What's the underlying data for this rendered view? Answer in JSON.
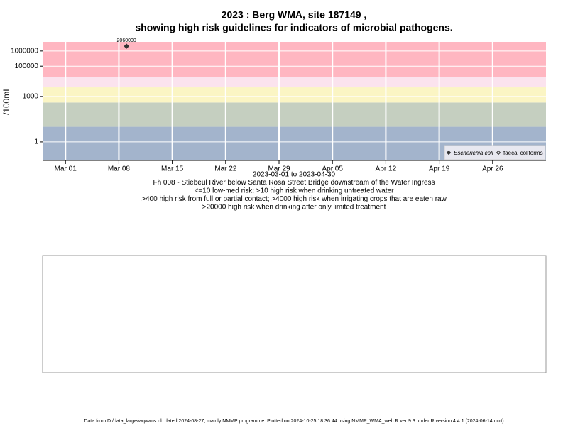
{
  "chart_data": {
    "type": "scatter",
    "title": "2023 : Berg WMA, site 187149 ,",
    "subtitle": "showing high risk guidelines for indicators of microbial pathogens.",
    "y_label": "/100mL",
    "log_y": true,
    "grid": true,
    "xlim": [
      "2023-02-26",
      "2023-05-03"
    ],
    "xticks": [
      {
        "value": "2023-03-01",
        "label": "Mar 01"
      },
      {
        "value": "2023-03-08",
        "label": "Mar 08"
      },
      {
        "value": "2023-03-15",
        "label": "Mar 15"
      },
      {
        "value": "2023-03-22",
        "label": "Mar 22"
      },
      {
        "value": "2023-03-29",
        "label": "Mar 29"
      },
      {
        "value": "2023-04-05",
        "label": "Apr 05"
      },
      {
        "value": "2023-04-12",
        "label": "Apr 12"
      },
      {
        "value": "2023-04-19",
        "label": "Apr 19"
      },
      {
        "value": "2023-04-26",
        "label": "Apr 26"
      }
    ],
    "ylim": [
      0.06,
      4000000
    ],
    "yticks": [
      1,
      1000,
      100000,
      1000000
    ],
    "thresholds": [
      10,
      400,
      4000,
      20000
    ],
    "band_colors": [
      "#a3b4cc",
      "#c5cfc0",
      "#fbf5c4",
      "#fbe3ee",
      "#ffb6c1"
    ],
    "series": [
      {
        "name": "Escherichia coli",
        "color": "#333333",
        "marker": "filled",
        "x": [
          "2023-03-09"
        ],
        "values": [
          2060000
        ]
      },
      {
        "name": "faecal coliforms",
        "color": "#333333",
        "marker": "open",
        "x": [],
        "values": []
      }
    ],
    "legend": "bottom-right",
    "notes": [
      "2023-03-01 to 2023-04-30",
      "Fh 008 - Stiebeul River below Santa Rosa Street Bridge downstream of the Water Ingress",
      "<=10 low-med risk; >10 high risk when drinking untreated water",
      ">400 high risk from full or partial contact; >4000 high risk when irrigating crops that are eaten raw",
      ">20000 high risk when drinking after only limited treatment"
    ],
    "footer": "Data from D:/data_large/wq/wms.db dated 2024-08-27, mainly NMMP programme. Plotted on 2024-10-25 18:36:44 using NMMP_WMA_web.R ver 9.3 under R version 4.4.1 (2024-06-14 ucrt)"
  }
}
